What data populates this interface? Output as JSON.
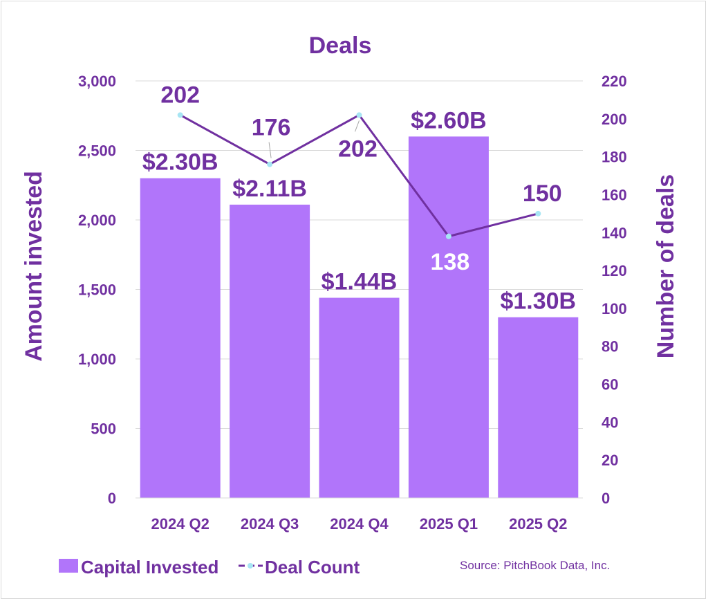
{
  "chart_data": {
    "type": "bar",
    "title": "Deals",
    "categories": [
      "2024 Q2",
      "2024 Q3",
      "2024 Q4",
      "2025 Q1",
      "2025 Q2"
    ],
    "series": [
      {
        "name": "Capital Invested",
        "type": "bar",
        "axis": "left",
        "values": [
          2300,
          2110,
          1440,
          2600,
          1300
        ],
        "data_labels": [
          "$2.30B",
          "$2.11B",
          "$1.44B",
          "$2.60B",
          "$1.30B"
        ]
      },
      {
        "name": "Deal Count",
        "type": "line",
        "axis": "right",
        "values": [
          202,
          176,
          202,
          138,
          150
        ],
        "data_labels": [
          "202",
          "176",
          "202",
          "138",
          "150"
        ]
      }
    ],
    "ylabel": "Amount invested",
    "ylabel_right": "Number of deals",
    "ylim": [
      0,
      3000
    ],
    "ylim_right": [
      0,
      220
    ],
    "yticks": [
      "0",
      "500",
      "1,000",
      "1,500",
      "2,000",
      "2,500",
      "3,000"
    ],
    "yticks_right": [
      "0",
      "20",
      "40",
      "60",
      "80",
      "100",
      "120",
      "140",
      "160",
      "180",
      "200",
      "220"
    ],
    "grid": true,
    "legend": "bottom-left",
    "source": "Source: PitchBook Data, Inc.",
    "colors": {
      "bar": "#b175fa",
      "line": "#7030a0",
      "marker": "#a7e5f3",
      "text": "#7030a0",
      "label_inside": "#ffffff",
      "grid": "#d9d9d9"
    }
  }
}
